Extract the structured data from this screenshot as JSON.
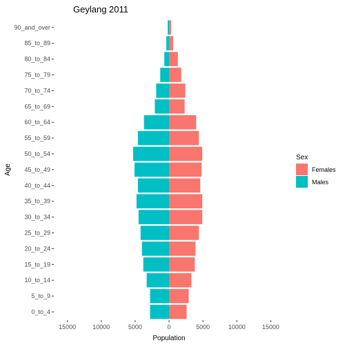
{
  "chart_data": {
    "type": "bar",
    "orientation": "horizontal",
    "title": "Geylang  2011",
    "xlabel": "Population",
    "ylabel": "Age",
    "categories": [
      "0_to_4",
      "5_to_9",
      "10_to_14",
      "15_to_19",
      "20_to_24",
      "25_to_29",
      "30_to_34",
      "35_to_39",
      "40_to_44",
      "45_to_49",
      "50_to_54",
      "55_to_59",
      "60_to_64",
      "65_to_69",
      "70_to_74",
      "75_to_79",
      "80_to_84",
      "85_to_89",
      "90_and_over"
    ],
    "series": [
      {
        "name": "Females",
        "color": "#F8766D",
        "values": [
          2600,
          2900,
          3300,
          3800,
          3900,
          4400,
          4900,
          4900,
          4600,
          4800,
          4900,
          4400,
          4000,
          2300,
          2400,
          1800,
          1300,
          600,
          300
        ]
      },
      {
        "name": "Males",
        "color": "#00BFC4",
        "values": [
          2800,
          2800,
          3300,
          3800,
          4000,
          4200,
          4500,
          4800,
          4600,
          5100,
          5300,
          4600,
          3700,
          2100,
          1900,
          1300,
          700,
          400,
          200
        ]
      }
    ],
    "note": "Male values plotted to the left of zero",
    "xticks": [
      -15000,
      -10000,
      -5000,
      0,
      5000,
      10000,
      15000
    ],
    "xtick_labels": [
      "15000",
      "10000",
      "5000",
      "0",
      "5000",
      "10000",
      "15000"
    ],
    "xlim": [
      -17000,
      17000
    ],
    "grid": false,
    "legend": {
      "title": "Sex",
      "position": "right",
      "items": [
        "Females",
        "Males"
      ]
    }
  }
}
